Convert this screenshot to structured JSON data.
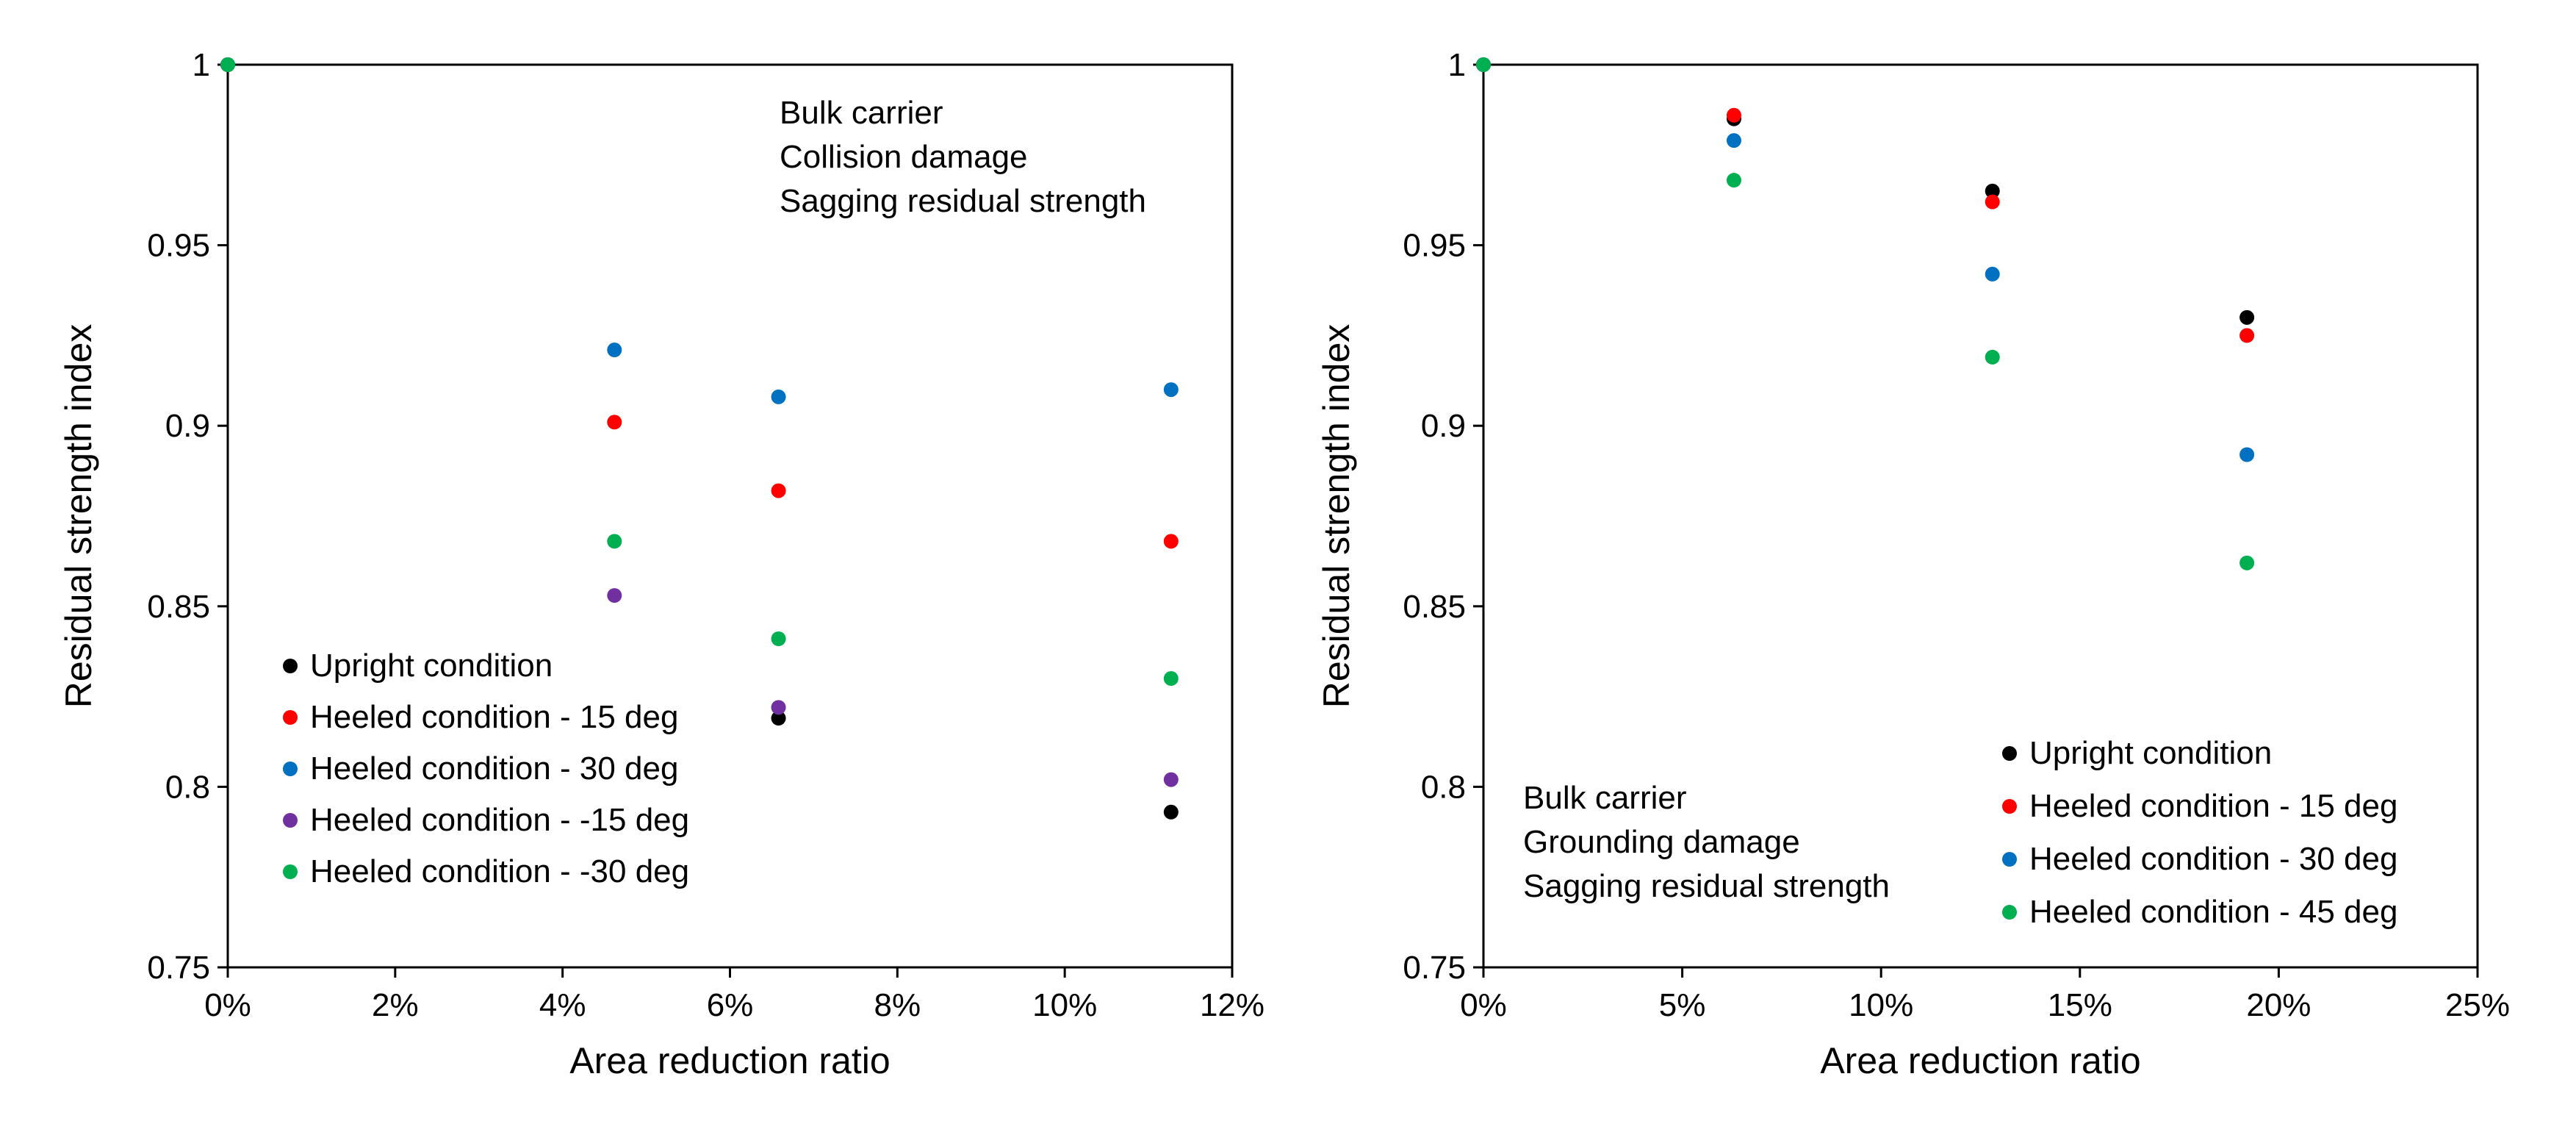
{
  "chart_data": [
    {
      "type": "scatter",
      "xlabel": "Area reduction ratio",
      "ylabel": "Residual strength index",
      "xlim": [
        0,
        0.12
      ],
      "ylim": [
        0.75,
        1
      ],
      "xticks": [
        "0%",
        "2%",
        "4%",
        "6%",
        "8%",
        "10%",
        "12%"
      ],
      "yticks": [
        "0.75",
        "0.8",
        "0.85",
        "0.9",
        "0.95",
        "1"
      ],
      "annotation": [
        "Bulk carrier",
        "Collision damage",
        "Sagging residual strength"
      ],
      "legend_position": "bottom-left",
      "series": [
        {
          "name": "Upright condition",
          "color": "#000000",
          "points": [
            [
              0,
              1
            ],
            [
              0.0658,
              0.819
            ],
            [
              0.1127,
              0.793
            ]
          ]
        },
        {
          "name": "Heeled condition - 15 deg",
          "color": "#ff0000",
          "points": [
            [
              0,
              1
            ],
            [
              0.0462,
              0.901
            ],
            [
              0.0658,
              0.882
            ],
            [
              0.1127,
              0.868
            ]
          ]
        },
        {
          "name": "Heeled condition - 30 deg",
          "color": "#0070c0",
          "points": [
            [
              0,
              1
            ],
            [
              0.0462,
              0.921
            ],
            [
              0.0658,
              0.908
            ],
            [
              0.1127,
              0.91
            ]
          ]
        },
        {
          "name": "Heeled condition - -15 deg",
          "color": "#7030a0",
          "points": [
            [
              0,
              1
            ],
            [
              0.0462,
              0.853
            ],
            [
              0.0658,
              0.822
            ],
            [
              0.1127,
              0.802
            ]
          ]
        },
        {
          "name": "Heeled condition - -30 deg",
          "color": "#00b050",
          "points": [
            [
              0,
              1
            ],
            [
              0.0462,
              0.868
            ],
            [
              0.0658,
              0.841
            ],
            [
              0.1127,
              0.83
            ]
          ]
        }
      ]
    },
    {
      "type": "scatter",
      "xlabel": "Area reduction ratio",
      "ylabel": "Residual strength index",
      "xlim": [
        0,
        0.25
      ],
      "ylim": [
        0.75,
        1
      ],
      "xticks": [
        "0%",
        "5%",
        "10%",
        "15%",
        "20%",
        "25%"
      ],
      "yticks": [
        "0.75",
        "0.8",
        "0.85",
        "0.9",
        "0.95",
        "1"
      ],
      "annotation": [
        "Bulk carrier",
        "Grounding damage",
        "Sagging residual strength"
      ],
      "legend_position": "bottom-right",
      "series": [
        {
          "name": "Upright condition",
          "color": "#000000",
          "points": [
            [
              0,
              1
            ],
            [
              0.063,
              0.985
            ],
            [
              0.128,
              0.965
            ],
            [
              0.192,
              0.93
            ]
          ]
        },
        {
          "name": "Heeled condition - 15 deg",
          "color": "#ff0000",
          "points": [
            [
              0,
              1
            ],
            [
              0.063,
              0.986
            ],
            [
              0.128,
              0.962
            ],
            [
              0.192,
              0.925
            ]
          ]
        },
        {
          "name": "Heeled condition - 30 deg",
          "color": "#0070c0",
          "points": [
            [
              0,
              1
            ],
            [
              0.063,
              0.979
            ],
            [
              0.128,
              0.942
            ],
            [
              0.192,
              0.892
            ]
          ]
        },
        {
          "name": "Heeled condition - 45 deg",
          "color": "#00b050",
          "points": [
            [
              0,
              1
            ],
            [
              0.063,
              0.968
            ],
            [
              0.128,
              0.919
            ],
            [
              0.192,
              0.862
            ]
          ]
        }
      ]
    }
  ]
}
